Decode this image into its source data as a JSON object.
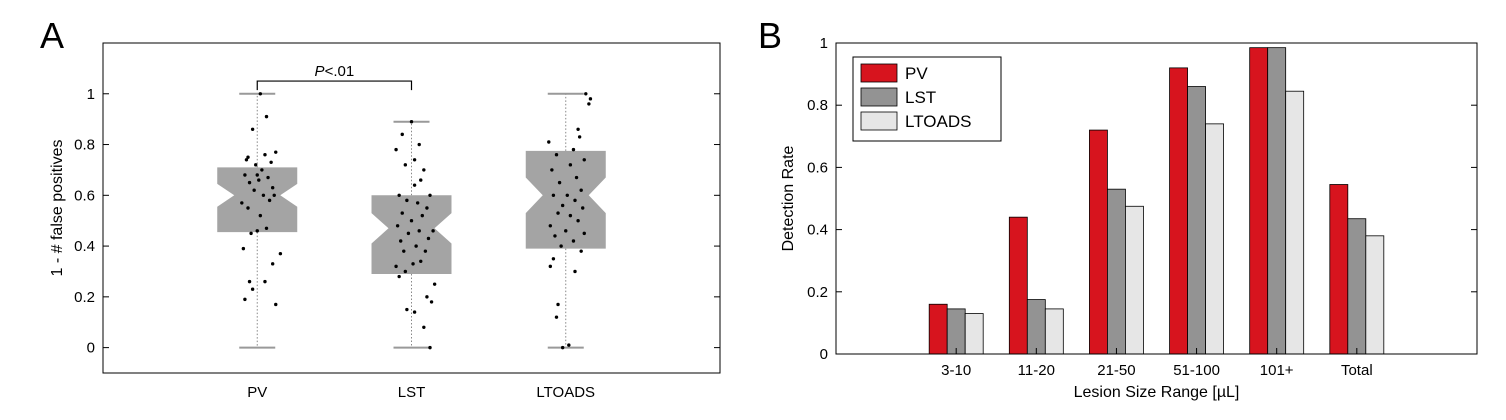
{
  "chart_data": [
    {
      "panel": "A",
      "type": "boxplot",
      "ylabel": "1 - # false positives",
      "xlabel": "",
      "categories": [
        "PV",
        "LST",
        "LTOADS"
      ],
      "ylim": [
        -0.1,
        1.2
      ],
      "yticks": [
        0,
        0.2,
        0.4,
        0.6,
        0.8,
        1
      ],
      "yticklabels": [
        "0",
        "0.2",
        "0.4",
        "0.6",
        "0.8",
        "1"
      ],
      "annotation": {
        "text": "P<.01",
        "between": [
          "PV",
          "LST"
        ],
        "y": 1.05
      },
      "boxes": [
        {
          "name": "PV",
          "whisker_low": 0,
          "q1": 0.455,
          "median": 0.6,
          "q3": 0.71,
          "whisker_high": 1.0,
          "notch_low": 0.555,
          "notch_high": 0.645
        },
        {
          "name": "LST",
          "whisker_low": 0,
          "q1": 0.29,
          "median": 0.47,
          "q3": 0.6,
          "whisker_high": 0.89,
          "notch_low": 0.41,
          "notch_high": 0.53
        },
        {
          "name": "LTOADS",
          "whisker_low": 0,
          "q1": 0.39,
          "median": 0.6,
          "q3": 0.775,
          "whisker_high": 1.0,
          "notch_low": 0.53,
          "notch_high": 0.67
        }
      ],
      "points": [
        [
          [
            -0.08,
            0.19
          ],
          [
            -0.05,
            0.26
          ],
          [
            -0.03,
            0.23
          ],
          [
            0.05,
            0.26
          ],
          [
            0.12,
            0.17
          ],
          [
            0.15,
            0.37
          ],
          [
            0.1,
            0.33
          ],
          [
            -0.09,
            0.39
          ],
          [
            0.0,
            0.46
          ],
          [
            -0.04,
            0.45
          ],
          [
            0.06,
            0.47
          ],
          [
            0.02,
            0.52
          ],
          [
            -0.06,
            0.55
          ],
          [
            0.08,
            0.58
          ],
          [
            0.04,
            0.6
          ],
          [
            -0.02,
            0.62
          ],
          [
            0.1,
            0.63
          ],
          [
            -0.05,
            0.65
          ],
          [
            0.01,
            0.66
          ],
          [
            0.07,
            0.67
          ],
          [
            -0.08,
            0.68
          ],
          [
            0.03,
            0.7
          ],
          [
            -0.01,
            0.72
          ],
          [
            0.09,
            0.73
          ],
          [
            -0.06,
            0.75
          ],
          [
            0.05,
            0.76
          ],
          [
            0.12,
            0.77
          ],
          [
            -0.03,
            0.86
          ],
          [
            0.06,
            0.91
          ],
          [
            0.02,
            1.0
          ],
          [
            -0.07,
            0.74
          ],
          [
            0.11,
            0.6
          ],
          [
            -0.1,
            0.57
          ],
          [
            0.0,
            0.68
          ]
        ],
        [
          [
            0.12,
            0.0
          ],
          [
            0.08,
            0.08
          ],
          [
            -0.03,
            0.15
          ],
          [
            0.02,
            0.14
          ],
          [
            0.13,
            0.18
          ],
          [
            0.1,
            0.2
          ],
          [
            0.15,
            0.25
          ],
          [
            -0.08,
            0.28
          ],
          [
            -0.04,
            0.3
          ],
          [
            -0.1,
            0.32
          ],
          [
            0.01,
            0.33
          ],
          [
            0.06,
            0.34
          ],
          [
            -0.05,
            0.38
          ],
          [
            0.09,
            0.38
          ],
          [
            0.03,
            0.4
          ],
          [
            -0.07,
            0.42
          ],
          [
            0.11,
            0.43
          ],
          [
            -0.02,
            0.45
          ],
          [
            0.05,
            0.46
          ],
          [
            0.14,
            0.46
          ],
          [
            -0.09,
            0.48
          ],
          [
            0.0,
            0.5
          ],
          [
            0.07,
            0.52
          ],
          [
            -0.06,
            0.53
          ],
          [
            0.1,
            0.55
          ],
          [
            0.04,
            0.57
          ],
          [
            -0.03,
            0.58
          ],
          [
            0.12,
            0.6
          ],
          [
            -0.08,
            0.6
          ],
          [
            0.02,
            0.64
          ],
          [
            0.06,
            0.66
          ],
          [
            0.08,
            0.7
          ],
          [
            -0.04,
            0.72
          ],
          [
            0.02,
            0.74
          ],
          [
            -0.1,
            0.78
          ],
          [
            0.05,
            0.8
          ],
          [
            -0.06,
            0.84
          ],
          [
            0.0,
            0.89
          ]
        ],
        [
          [
            -0.02,
            0.0
          ],
          [
            0.02,
            0.01
          ],
          [
            -0.06,
            0.12
          ],
          [
            -0.05,
            0.17
          ],
          [
            -0.1,
            0.32
          ],
          [
            0.06,
            0.3
          ],
          [
            -0.08,
            0.35
          ],
          [
            0.1,
            0.38
          ],
          [
            -0.03,
            0.4
          ],
          [
            0.05,
            0.42
          ],
          [
            -0.07,
            0.44
          ],
          [
            0.12,
            0.45
          ],
          [
            0.0,
            0.46
          ],
          [
            -0.1,
            0.48
          ],
          [
            0.08,
            0.5
          ],
          [
            0.03,
            0.52
          ],
          [
            -0.05,
            0.53
          ],
          [
            0.11,
            0.55
          ],
          [
            -0.02,
            0.56
          ],
          [
            0.06,
            0.58
          ],
          [
            -0.08,
            0.6
          ],
          [
            0.01,
            0.6
          ],
          [
            0.1,
            0.62
          ],
          [
            -0.04,
            0.65
          ],
          [
            0.07,
            0.67
          ],
          [
            -0.09,
            0.7
          ],
          [
            0.03,
            0.72
          ],
          [
            0.12,
            0.74
          ],
          [
            -0.06,
            0.76
          ],
          [
            0.05,
            0.78
          ],
          [
            0.09,
            0.83
          ],
          [
            0.08,
            0.86
          ],
          [
            0.15,
            0.96
          ],
          [
            0.16,
            0.98
          ],
          [
            0.13,
            1.0
          ],
          [
            -0.11,
            0.81
          ]
        ]
      ]
    },
    {
      "panel": "B",
      "type": "bar",
      "ylabel": "Detection Rate",
      "xlabel": "Lesion Size Range [µL]",
      "categories": [
        "3-10",
        "11-20",
        "21-50",
        "51-100",
        "101+",
        "Total"
      ],
      "ylim": [
        0,
        1
      ],
      "yticks": [
        0,
        0.2,
        0.4,
        0.6,
        0.8,
        1
      ],
      "yticklabels": [
        "0",
        "0.2",
        "0.4",
        "0.6",
        "0.8",
        "1"
      ],
      "series": [
        {
          "name": "PV",
          "color": "#d7141e",
          "values": [
            0.16,
            0.44,
            0.72,
            0.92,
            0.985,
            0.545
          ]
        },
        {
          "name": "LST",
          "color": "#939393",
          "values": [
            0.145,
            0.175,
            0.53,
            0.86,
            0.985,
            0.435
          ]
        },
        {
          "name": "LTOADS",
          "color": "#e6e6e6",
          "values": [
            0.13,
            0.145,
            0.475,
            0.74,
            0.845,
            0.38
          ]
        }
      ],
      "legend": {
        "placement": "top-left"
      }
    }
  ]
}
